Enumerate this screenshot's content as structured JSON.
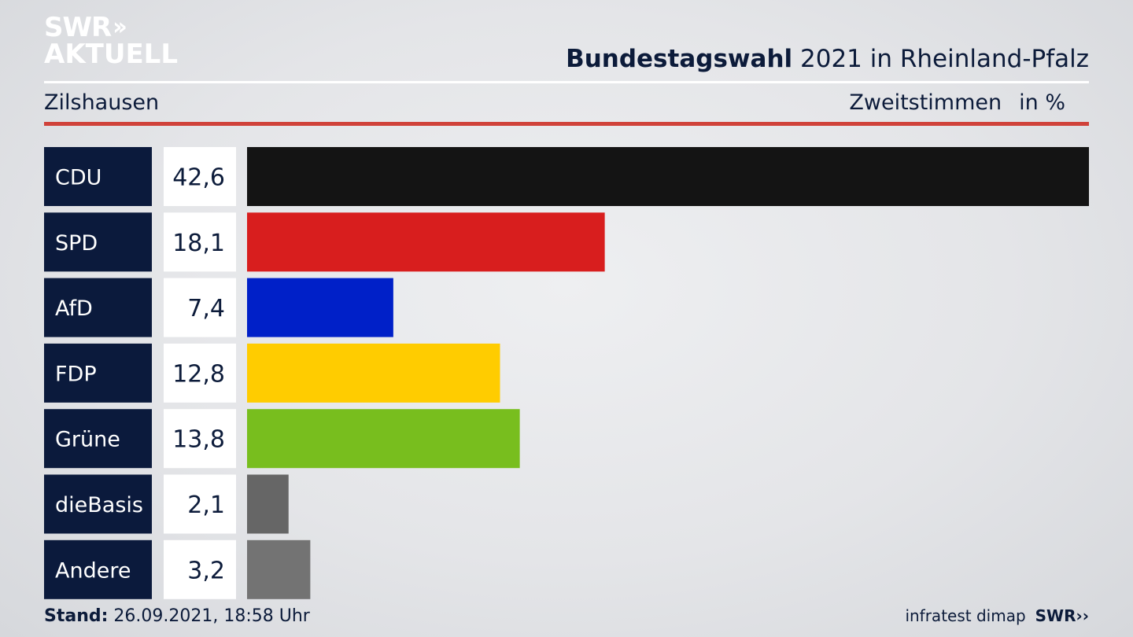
{
  "header": {
    "logo_line1": "SWR",
    "logo_line2": "AKTUELL",
    "title_bold": "Bundestagswahl",
    "title_rest": " 2021 in Rheinland-Pfalz",
    "subtitle": "Zilshausen",
    "metric": "Zweitstimmen",
    "unit": "in %"
  },
  "chart_data": {
    "type": "bar",
    "orientation": "horizontal",
    "categories": [
      "CDU",
      "SPD",
      "AfD",
      "FDP",
      "Grüne",
      "dieBasis",
      "Andere"
    ],
    "values": [
      42.6,
      18.1,
      7.4,
      12.8,
      13.8,
      2.1,
      3.2
    ],
    "value_labels": [
      "42,6",
      "18,1",
      "7,4",
      "12,8",
      "13,8",
      "2,1",
      "3,2"
    ],
    "colors": [
      "#141414",
      "#d81e1e",
      "#0020c8",
      "#ffcc00",
      "#78be1e",
      "#666666",
      "#737373"
    ],
    "xlim": [
      0,
      42.6
    ]
  },
  "footer": {
    "stand_label": "Stand:",
    "stand_value": " 26.09.2021, 18:58 Uhr",
    "source": "infratest dimap",
    "brand": "SWR"
  }
}
